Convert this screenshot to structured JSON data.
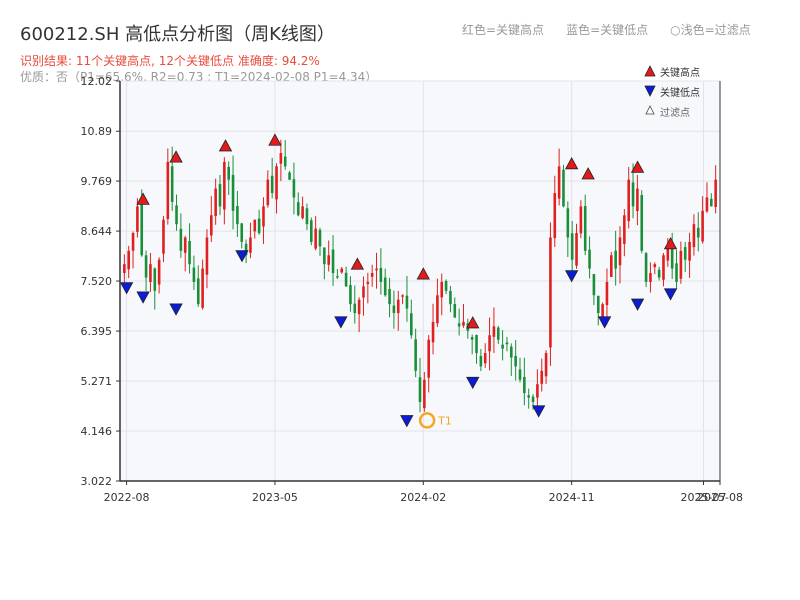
{
  "header": {
    "title": "600212.SH 高低点分析图（周K线图）",
    "result": "识别结果: 11个关键高点, 12个关键低点  准确度: 94.2%",
    "quality": "优质：否（P1=65.6%, R2=0.73 ; T1=2024-02-08 P1=4.34）",
    "legend_top": {
      "red": "红色=关键高点",
      "blue": "蓝色=关键低点",
      "filter": "浅色=过滤点"
    }
  },
  "colors": {
    "up": "#e02020",
    "down": "#1a8f3a",
    "high_marker": "#e31a1c",
    "low_marker": "#0b1bd6",
    "t1_ring": "#f5a623",
    "plot_bg": "#f6f8fb",
    "grid": "#e0e4ea",
    "axis": "#333333"
  },
  "chart_data": {
    "type": "candlestick",
    "y_ticks": [
      "3.022",
      "4.146",
      "5.271",
      "6.395",
      "7.520",
      "8.644",
      "9.769",
      "10.89",
      "12.02"
    ],
    "ylim": [
      3.022,
      12.02
    ],
    "x_ticks": [
      "2022-08",
      "2023-05",
      "2024-02",
      "2024-11",
      "2025-07",
      "2025-08"
    ],
    "legend": {
      "high": "关键高点",
      "low": "关键低点",
      "filtered": "过滤点"
    },
    "t1_label": "T1",
    "closes": [
      7.9,
      8.2,
      8.6,
      9.2,
      8.1,
      7.6,
      7.9,
      7.3,
      8.0,
      8.9,
      10.2,
      9.3,
      8.8,
      8.2,
      8.5,
      7.9,
      7.5,
      7.0,
      7.8,
      8.5,
      9.0,
      9.6,
      9.2,
      10.2,
      9.8,
      9.1,
      8.8,
      8.4,
      8.1,
      8.5,
      8.9,
      8.6,
      9.2,
      9.8,
      9.5,
      10.1,
      10.4,
      10.1,
      9.8,
      9.4,
      9.0,
      9.2,
      8.8,
      8.4,
      8.7,
      8.3,
      7.9,
      8.1,
      7.7,
      7.6,
      7.8,
      7.4,
      7.0,
      6.8,
      7.1,
      7.4,
      7.5,
      7.7,
      7.8,
      7.5,
      7.2,
      7.0,
      6.8,
      7.1,
      7.2,
      6.9,
      6.3,
      5.5,
      4.8,
      5.3,
      6.2,
      6.6,
      7.2,
      7.5,
      7.3,
      7.0,
      6.7,
      6.5,
      6.6,
      6.4,
      6.2,
      5.9,
      5.6,
      5.9,
      6.3,
      6.5,
      6.2,
      6.0,
      6.1,
      5.8,
      5.6,
      5.3,
      5.0,
      4.9,
      4.8,
      5.2,
      5.5,
      5.9,
      8.5,
      9.5,
      10.1,
      9.2,
      8.5,
      8.0,
      8.6,
      9.2,
      8.2,
      7.8,
      7.2,
      6.8,
      7.0,
      7.5,
      8.1,
      7.8,
      8.5,
      9.0,
      9.8,
      9.2,
      9.6,
      8.2,
      7.5,
      7.7,
      7.9,
      7.6,
      8.1,
      8.3,
      7.8,
      7.5,
      8.2,
      8.0,
      8.4,
      8.8,
      8.5,
      9.1,
      9.4,
      9.2,
      9.8
    ],
    "key_highs": [
      {
        "date": "2022-09",
        "value": 9.38
      },
      {
        "date": "2022-11",
        "value": 10.33
      },
      {
        "date": "2023-02",
        "value": 10.58
      },
      {
        "date": "2023-05",
        "value": 10.71
      },
      {
        "date": "2023-10",
        "value": 7.92
      },
      {
        "date": "2024-02",
        "value": 7.7
      },
      {
        "date": "2024-05",
        "value": 6.6
      },
      {
        "date": "2024-11",
        "value": 10.18
      },
      {
        "date": "2024-12",
        "value": 9.95
      },
      {
        "date": "2025-03",
        "value": 10.1
      },
      {
        "date": "2025-05",
        "value": 8.38
      }
    ],
    "key_lows": [
      {
        "date": "2022-08",
        "value": 7.35
      },
      {
        "date": "2022-09",
        "value": 7.14
      },
      {
        "date": "2022-11",
        "value": 6.87
      },
      {
        "date": "2023-03",
        "value": 8.07
      },
      {
        "date": "2023-09",
        "value": 6.58
      },
      {
        "date": "2024-01",
        "value": 4.36
      },
      {
        "date": "2024-05",
        "value": 5.22
      },
      {
        "date": "2024-09",
        "value": 4.58
      },
      {
        "date": "2024-11",
        "value": 7.62
      },
      {
        "date": "2025-01",
        "value": 6.58
      },
      {
        "date": "2025-03",
        "value": 6.98
      },
      {
        "date": "2025-05",
        "value": 7.21
      }
    ],
    "t1": {
      "date": "2024-02-08",
      "value": 4.34
    }
  }
}
